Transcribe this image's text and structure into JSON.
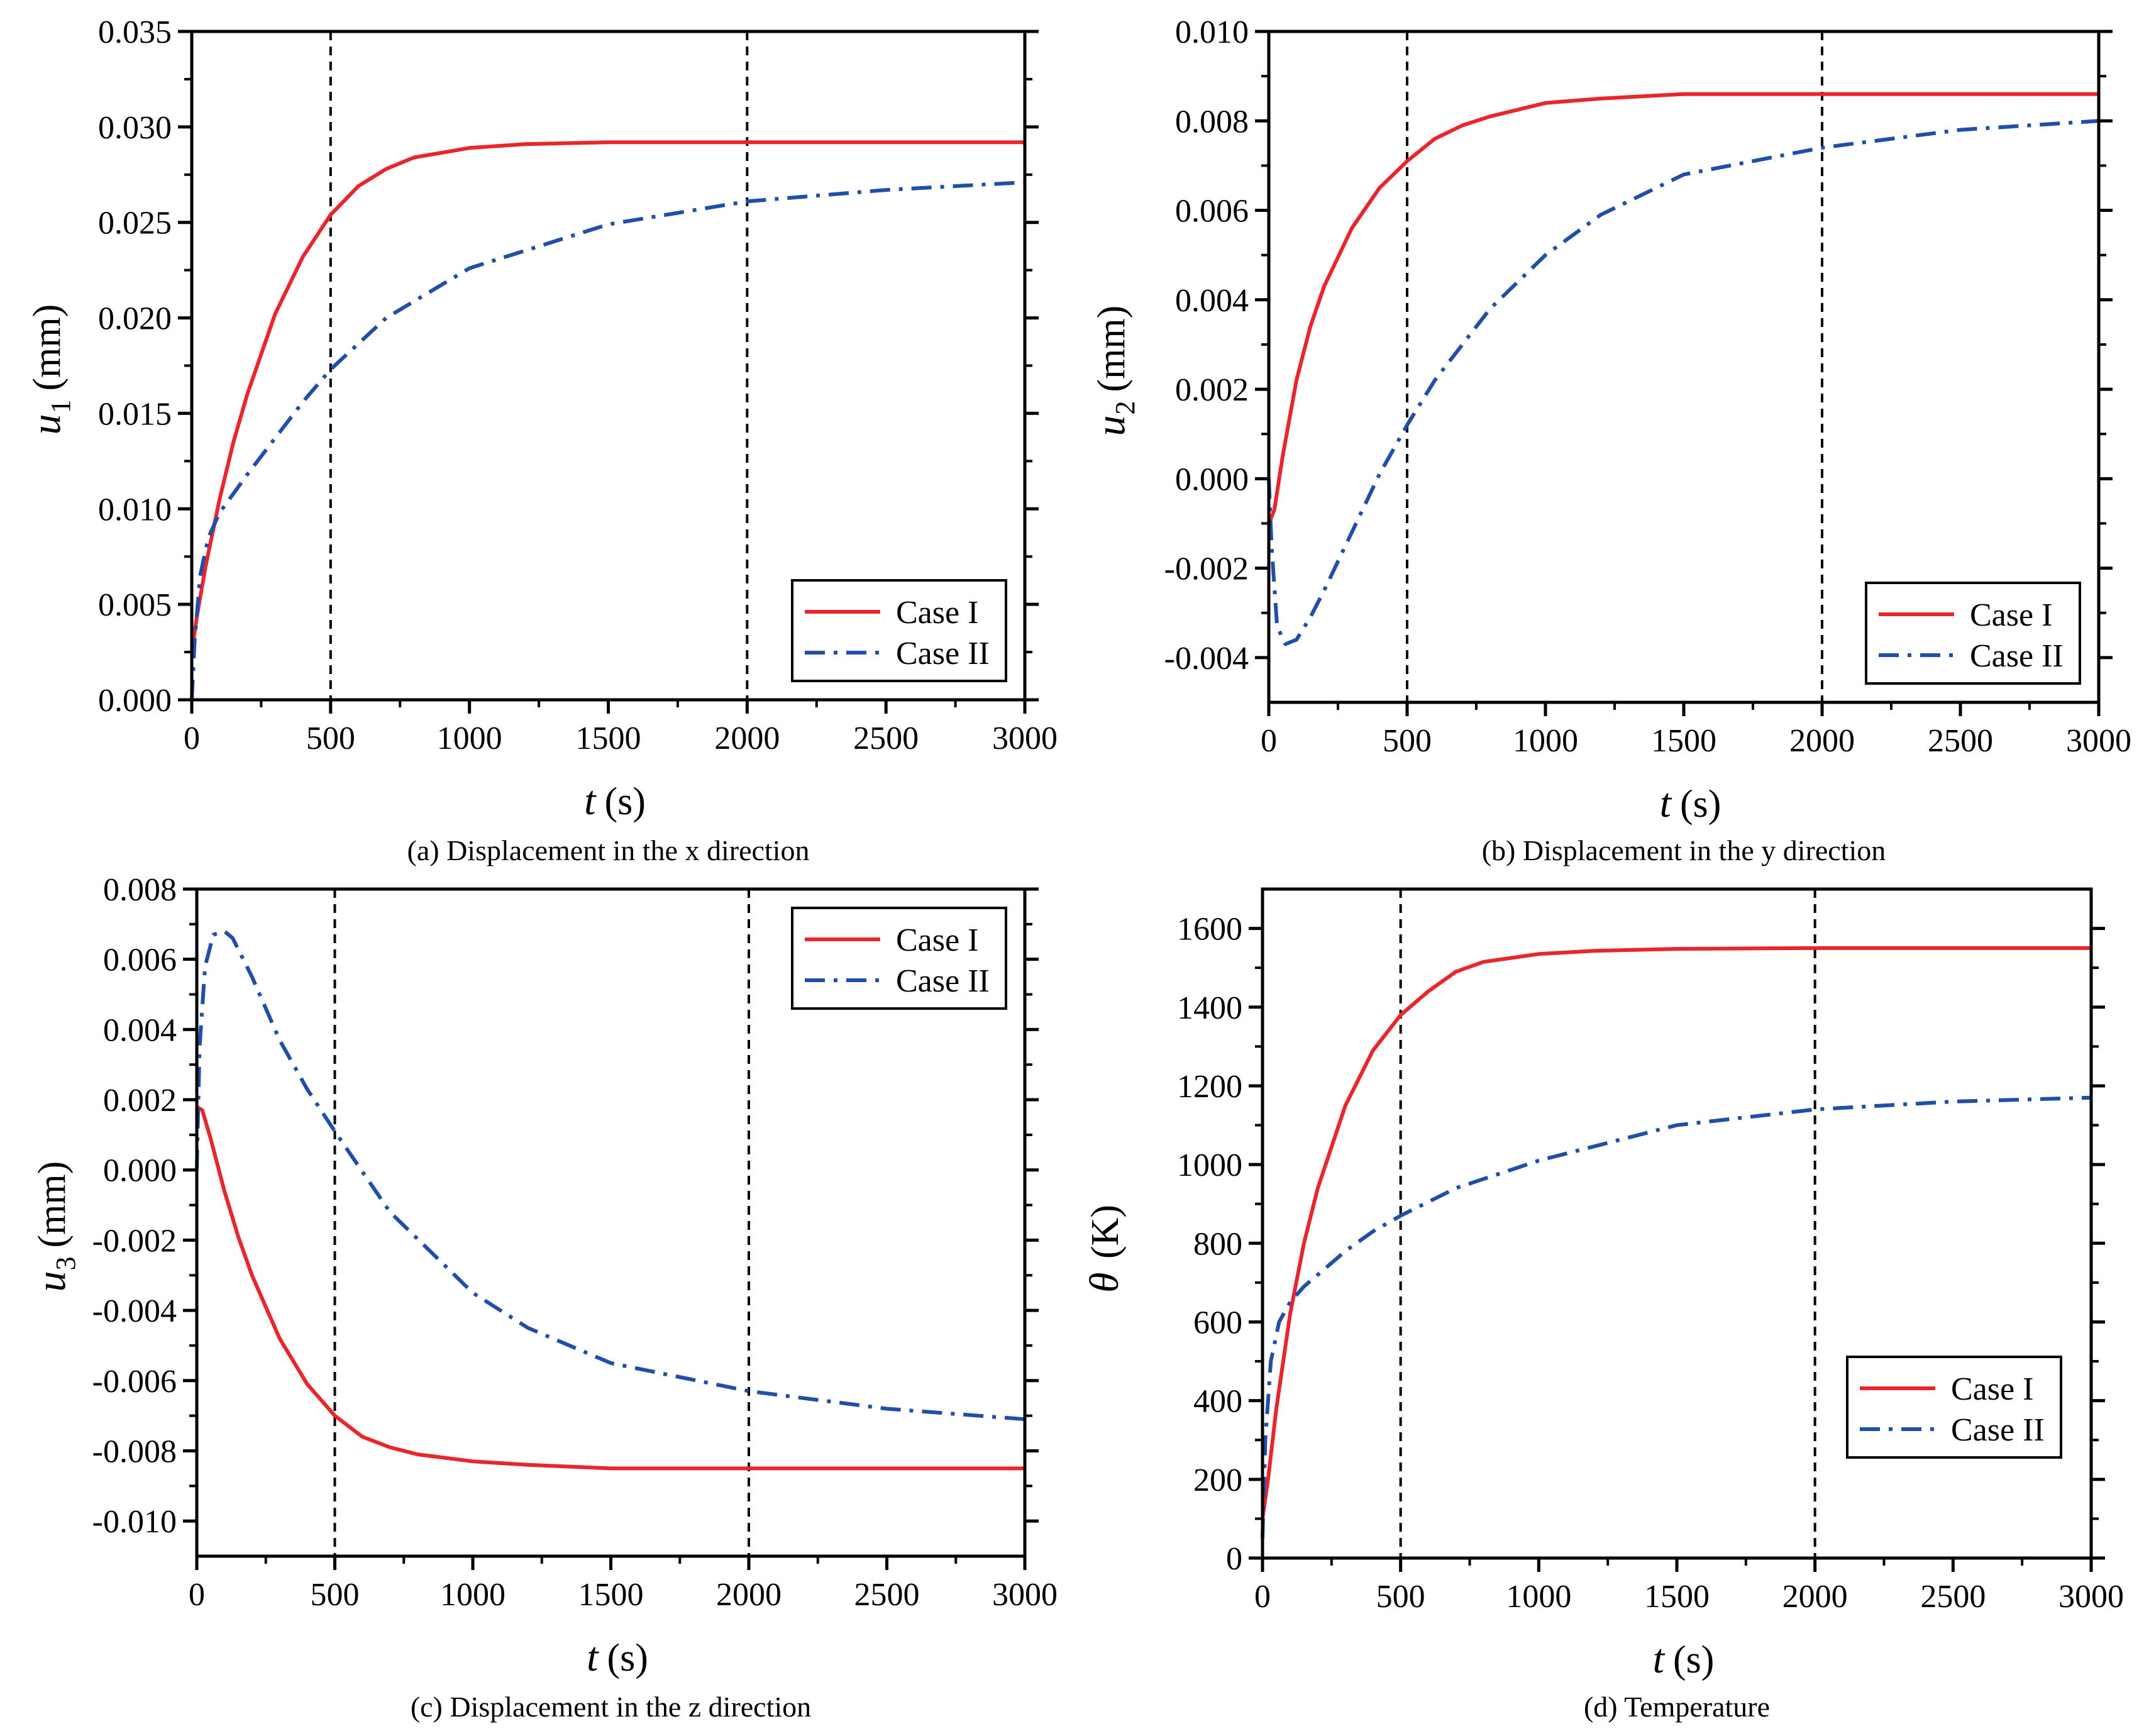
{
  "colors": {
    "case1": "#e8262b",
    "case2": "#1f4fa8",
    "axis": "#000000",
    "ref_line": "#000000"
  },
  "chart_data": [
    {
      "type": "line",
      "panel": "a",
      "caption": "(a) Displacement in the x direction",
      "xlabel_var": "t",
      "xlabel_unit": "(s)",
      "ylabel_var": "u",
      "ylabel_sub": "1",
      "ylabel_unit": "(mm)",
      "xlim": [
        0,
        3000
      ],
      "ylim": [
        0,
        0.035
      ],
      "xticks": [
        0,
        500,
        1000,
        1500,
        2000,
        2500,
        3000
      ],
      "xtick_labels": [
        "0",
        "500",
        "1000",
        "1500",
        "2000",
        "2500",
        "3000"
      ],
      "yticks": [
        0,
        0.005,
        0.01,
        0.015,
        0.02,
        0.025,
        0.03,
        0.035
      ],
      "ytick_labels": [
        "0.000",
        "0.005",
        "0.010",
        "0.015",
        "0.020",
        "0.025",
        "0.030",
        "0.035"
      ],
      "ref_lines_x": [
        500,
        2000
      ],
      "legend_loc": "lower-right",
      "series": [
        {
          "name": "Case I",
          "style": "solid",
          "color_key": "case1",
          "x": [
            0,
            20,
            50,
            100,
            150,
            200,
            300,
            400,
            500,
            600,
            700,
            800,
            1000,
            1200,
            1500,
            2000,
            2500,
            3000
          ],
          "y": [
            0.0025,
            0.0045,
            0.007,
            0.0105,
            0.0135,
            0.016,
            0.0202,
            0.0232,
            0.0254,
            0.0269,
            0.0278,
            0.0284,
            0.0289,
            0.0291,
            0.0292,
            0.0292,
            0.0292,
            0.0292
          ]
        },
        {
          "name": "Case II",
          "style": "dashdot",
          "color_key": "case2",
          "x": [
            0,
            10,
            30,
            60,
            100,
            150,
            200,
            300,
            400,
            500,
            700,
            1000,
            1500,
            2000,
            2500,
            3000
          ],
          "y": [
            0.0,
            0.003,
            0.0065,
            0.0085,
            0.0098,
            0.0108,
            0.0118,
            0.0137,
            0.0156,
            0.0173,
            0.02,
            0.0226,
            0.0249,
            0.0261,
            0.0267,
            0.0271
          ]
        }
      ]
    },
    {
      "type": "line",
      "panel": "b",
      "caption": "(b) Displacement in the y direction",
      "xlabel_var": "t",
      "xlabel_unit": "(s)",
      "ylabel_var": "u",
      "ylabel_sub": "2",
      "ylabel_unit": "(mm)",
      "xlim": [
        0,
        3000
      ],
      "ylim": [
        -0.005,
        0.01
      ],
      "xticks": [
        0,
        500,
        1000,
        1500,
        2000,
        2500,
        3000
      ],
      "xtick_labels": [
        "0",
        "500",
        "1000",
        "1500",
        "2000",
        "2500",
        "3000"
      ],
      "yticks": [
        -0.004,
        -0.002,
        0,
        0.002,
        0.004,
        0.006,
        0.008,
        0.01
      ],
      "ytick_labels": [
        "-0.004",
        "-0.002",
        "0.000",
        "0.002",
        "0.004",
        "0.006",
        "0.008",
        "0.010"
      ],
      "ref_lines_x": [
        500,
        2000
      ],
      "legend_loc": "lower-right",
      "series": [
        {
          "name": "Case I",
          "style": "solid",
          "color_key": "case1",
          "x": [
            0,
            20,
            50,
            100,
            150,
            200,
            300,
            400,
            500,
            600,
            700,
            800,
            1000,
            1200,
            1500,
            2000,
            2500,
            3000
          ],
          "y": [
            -0.001,
            -0.0007,
            0.0005,
            0.0022,
            0.0034,
            0.0043,
            0.0056,
            0.0065,
            0.0071,
            0.0076,
            0.0079,
            0.0081,
            0.0084,
            0.0085,
            0.0086,
            0.0086,
            0.0086,
            0.0086
          ]
        },
        {
          "name": "Case II",
          "style": "dashdot",
          "color_key": "case2",
          "x": [
            0,
            10,
            30,
            60,
            100,
            150,
            200,
            300,
            400,
            500,
            600,
            800,
            1000,
            1200,
            1500,
            2000,
            2500,
            3000
          ],
          "y": [
            0.0,
            -0.0015,
            -0.0033,
            -0.0037,
            -0.0036,
            -0.0031,
            -0.0025,
            -0.0012,
            0.0001,
            0.0012,
            0.0022,
            0.0038,
            0.005,
            0.0059,
            0.0068,
            0.0074,
            0.0078,
            0.008
          ]
        }
      ]
    },
    {
      "type": "line",
      "panel": "c",
      "caption": "(c) Displacement in the z direction",
      "xlabel_var": "t",
      "xlabel_unit": "(s)",
      "ylabel_var": "u",
      "ylabel_sub": "3",
      "ylabel_unit": "(mm)",
      "xlim": [
        0,
        3000
      ],
      "ylim": [
        -0.011,
        0.008
      ],
      "xticks": [
        0,
        500,
        1000,
        1500,
        2000,
        2500,
        3000
      ],
      "xtick_labels": [
        "0",
        "500",
        "1000",
        "1500",
        "2000",
        "2500",
        "3000"
      ],
      "yticks": [
        -0.01,
        -0.008,
        -0.006,
        -0.004,
        -0.002,
        0,
        0.002,
        0.004,
        0.006,
        0.008
      ],
      "ytick_labels": [
        "-0.010",
        "-0.008",
        "-0.006",
        "-0.004",
        "-0.002",
        "0.000",
        "0.002",
        "0.004",
        "0.006",
        "0.008"
      ],
      "ref_lines_x": [
        500,
        2000
      ],
      "legend_loc": "top-right",
      "series": [
        {
          "name": "Case I",
          "style": "solid",
          "color_key": "case1",
          "x": [
            0,
            20,
            50,
            100,
            150,
            200,
            300,
            400,
            500,
            600,
            700,
            800,
            1000,
            1200,
            1500,
            2000,
            2500,
            3000
          ],
          "y": [
            0.0018,
            0.0017,
            0.0009,
            -0.0006,
            -0.0019,
            -0.003,
            -0.0048,
            -0.0061,
            -0.007,
            -0.0076,
            -0.0079,
            -0.0081,
            -0.0083,
            -0.0084,
            -0.0085,
            -0.0085,
            -0.0085,
            -0.0085
          ]
        },
        {
          "name": "Case II",
          "style": "dashdot",
          "color_key": "case2",
          "x": [
            0,
            10,
            30,
            60,
            100,
            130,
            200,
            300,
            400,
            500,
            700,
            1000,
            1200,
            1500,
            2000,
            2500,
            3000
          ],
          "y": [
            0.0,
            0.0035,
            0.0058,
            0.0067,
            0.0068,
            0.0066,
            0.0055,
            0.0037,
            0.0023,
            0.0011,
            -0.0012,
            -0.0035,
            -0.0045,
            -0.0055,
            -0.0063,
            -0.0068,
            -0.0071
          ]
        }
      ]
    },
    {
      "type": "line",
      "panel": "d",
      "caption": "(d) Temperature",
      "xlabel_var": "t",
      "xlabel_unit": "(s)",
      "ylabel_var": "θ",
      "ylabel_sub": "",
      "ylabel_unit": "(K)",
      "xlim": [
        0,
        3000
      ],
      "ylim": [
        0,
        1700
      ],
      "xticks": [
        0,
        500,
        1000,
        1500,
        2000,
        2500,
        3000
      ],
      "xtick_labels": [
        "0",
        "500",
        "1000",
        "1500",
        "2000",
        "2500",
        "3000"
      ],
      "yticks": [
        0,
        200,
        400,
        600,
        800,
        1000,
        1200,
        1400,
        1600
      ],
      "ytick_labels": [
        "0",
        "200",
        "400",
        "600",
        "800",
        "1000",
        "1200",
        "1400",
        "1600"
      ],
      "ref_lines_x": [
        500,
        2000
      ],
      "legend_loc": "lower-right",
      "series": [
        {
          "name": "Case I",
          "style": "solid",
          "color_key": "case1",
          "x": [
            0,
            20,
            50,
            100,
            150,
            200,
            300,
            400,
            500,
            600,
            700,
            800,
            1000,
            1200,
            1500,
            2000,
            2500,
            3000
          ],
          "y": [
            100,
            200,
            380,
            620,
            800,
            940,
            1150,
            1290,
            1380,
            1440,
            1490,
            1515,
            1535,
            1543,
            1548,
            1550,
            1550,
            1550
          ]
        },
        {
          "name": "Case II",
          "style": "dashdot",
          "color_key": "case2",
          "x": [
            0,
            10,
            30,
            60,
            100,
            150,
            200,
            300,
            400,
            500,
            700,
            1000,
            1500,
            2000,
            2500,
            3000
          ],
          "y": [
            50,
            300,
            500,
            600,
            650,
            690,
            720,
            780,
            830,
            870,
            940,
            1010,
            1100,
            1140,
            1160,
            1170
          ]
        }
      ]
    }
  ]
}
